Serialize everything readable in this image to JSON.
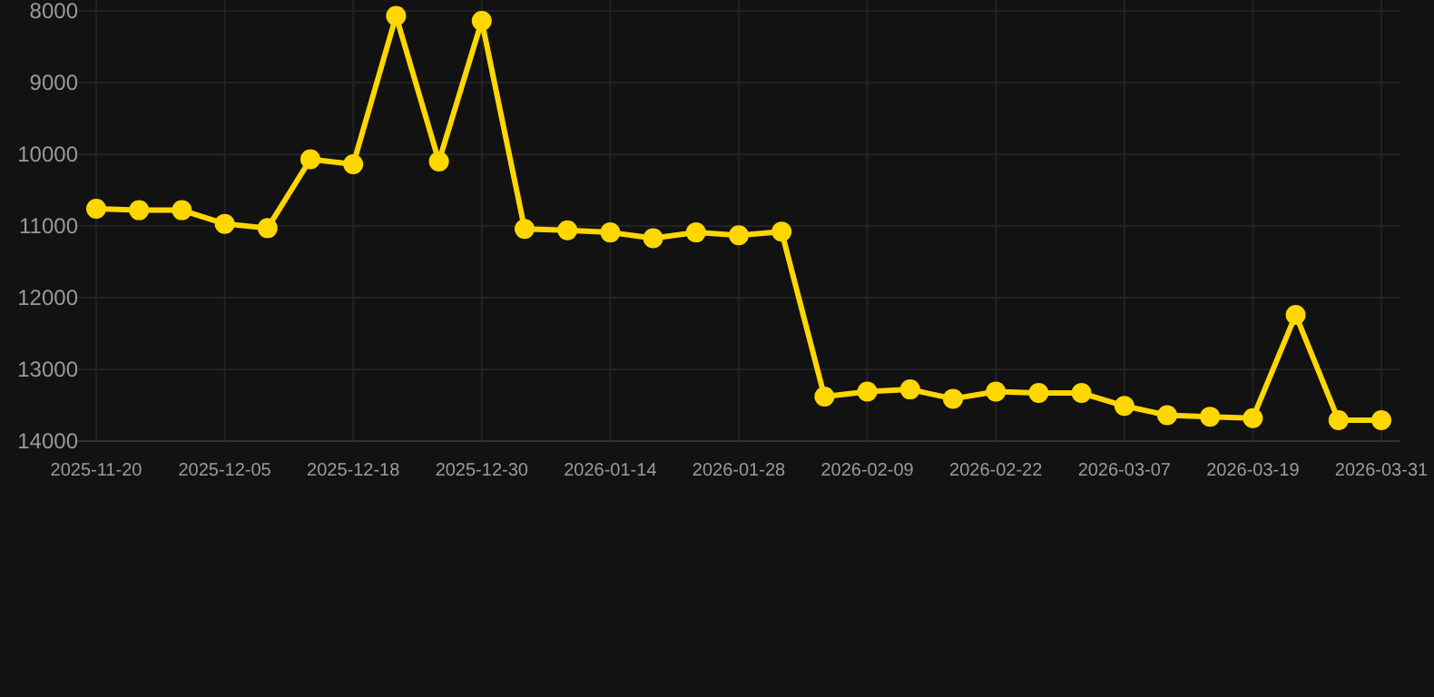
{
  "chart_data": {
    "type": "line",
    "categories": [
      "2025-11-20",
      null,
      null,
      "2025-12-05",
      null,
      null,
      "2025-12-18",
      null,
      null,
      "2025-12-30",
      null,
      null,
      "2026-01-14",
      null,
      null,
      "2026-01-28",
      null,
      null,
      "2026-02-09",
      null,
      null,
      "2026-02-22",
      null,
      null,
      "2026-03-07",
      null,
      null,
      "2026-03-19",
      null,
      null,
      "2026-03-31"
    ],
    "series": [
      {
        "color": "#ffd700",
        "values": [
          10760,
          10780,
          10780,
          10970,
          11030,
          10070,
          10140,
          8070,
          10100,
          8140,
          11040,
          11060,
          11090,
          11170,
          11090,
          11130,
          11080,
          13380,
          13310,
          13280,
          13410,
          13310,
          13330,
          13330,
          13510,
          13640,
          13660,
          13680,
          12240,
          13710,
          13710
        ]
      }
    ],
    "ylim": [
      14000,
      8000
    ],
    "yticks": [
      8000,
      9000,
      10000,
      11000,
      12000,
      13000,
      14000
    ],
    "grid": true,
    "marker": "circle",
    "line_style": "solid"
  }
}
